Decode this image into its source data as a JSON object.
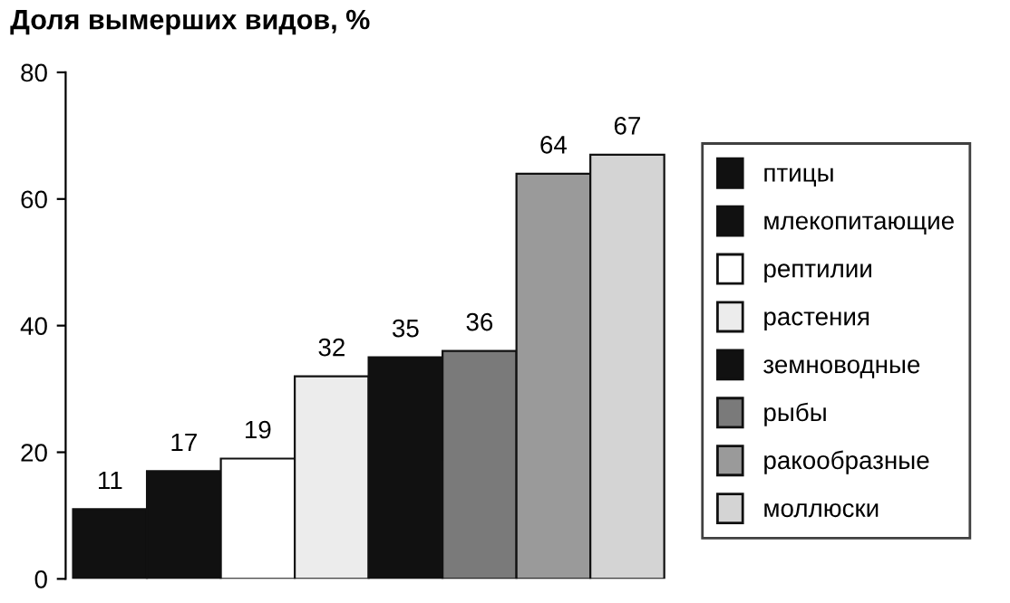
{
  "chart_data": {
    "type": "bar",
    "ylabel": "Доля вымерших видов, %",
    "stacked": true,
    "categories": [
      null,
      null,
      null,
      null,
      null,
      null,
      null,
      null
    ],
    "series": [
      {
        "name": "птицы",
        "color": "#111111",
        "values": [
          11,
          null,
          null,
          null,
          null,
          null,
          null,
          null
        ]
      },
      {
        "name": "млекопитающие",
        "color": "#111111",
        "values": [
          null,
          17,
          null,
          null,
          null,
          null,
          null,
          null
        ]
      },
      {
        "name": "рептилии",
        "color": "#ffffff",
        "values": [
          null,
          null,
          19,
          null,
          null,
          null,
          null,
          null
        ]
      },
      {
        "name": "растения",
        "color": "#ececec",
        "values": [
          null,
          null,
          null,
          32,
          null,
          null,
          null,
          null
        ]
      },
      {
        "name": "земноводные",
        "color": "#111111",
        "values": [
          null,
          null,
          null,
          null,
          35,
          null,
          null,
          null
        ]
      },
      {
        "name": "рыбы",
        "color": "#7a7a7a",
        "values": [
          null,
          null,
          null,
          null,
          null,
          36,
          null,
          null
        ]
      },
      {
        "name": "ракообразные",
        "color": "#9a9a9a",
        "values": [
          null,
          null,
          null,
          null,
          null,
          null,
          64,
          null
        ]
      },
      {
        "name": "моллюски",
        "color": "#d4d4d4",
        "values": [
          null,
          null,
          null,
          null,
          null,
          null,
          null,
          67
        ]
      }
    ],
    "ylim": [
      0,
      80
    ],
    "yticks": [
      0,
      20,
      40,
      60,
      80
    ],
    "data_labels": true,
    "legend": "right"
  }
}
